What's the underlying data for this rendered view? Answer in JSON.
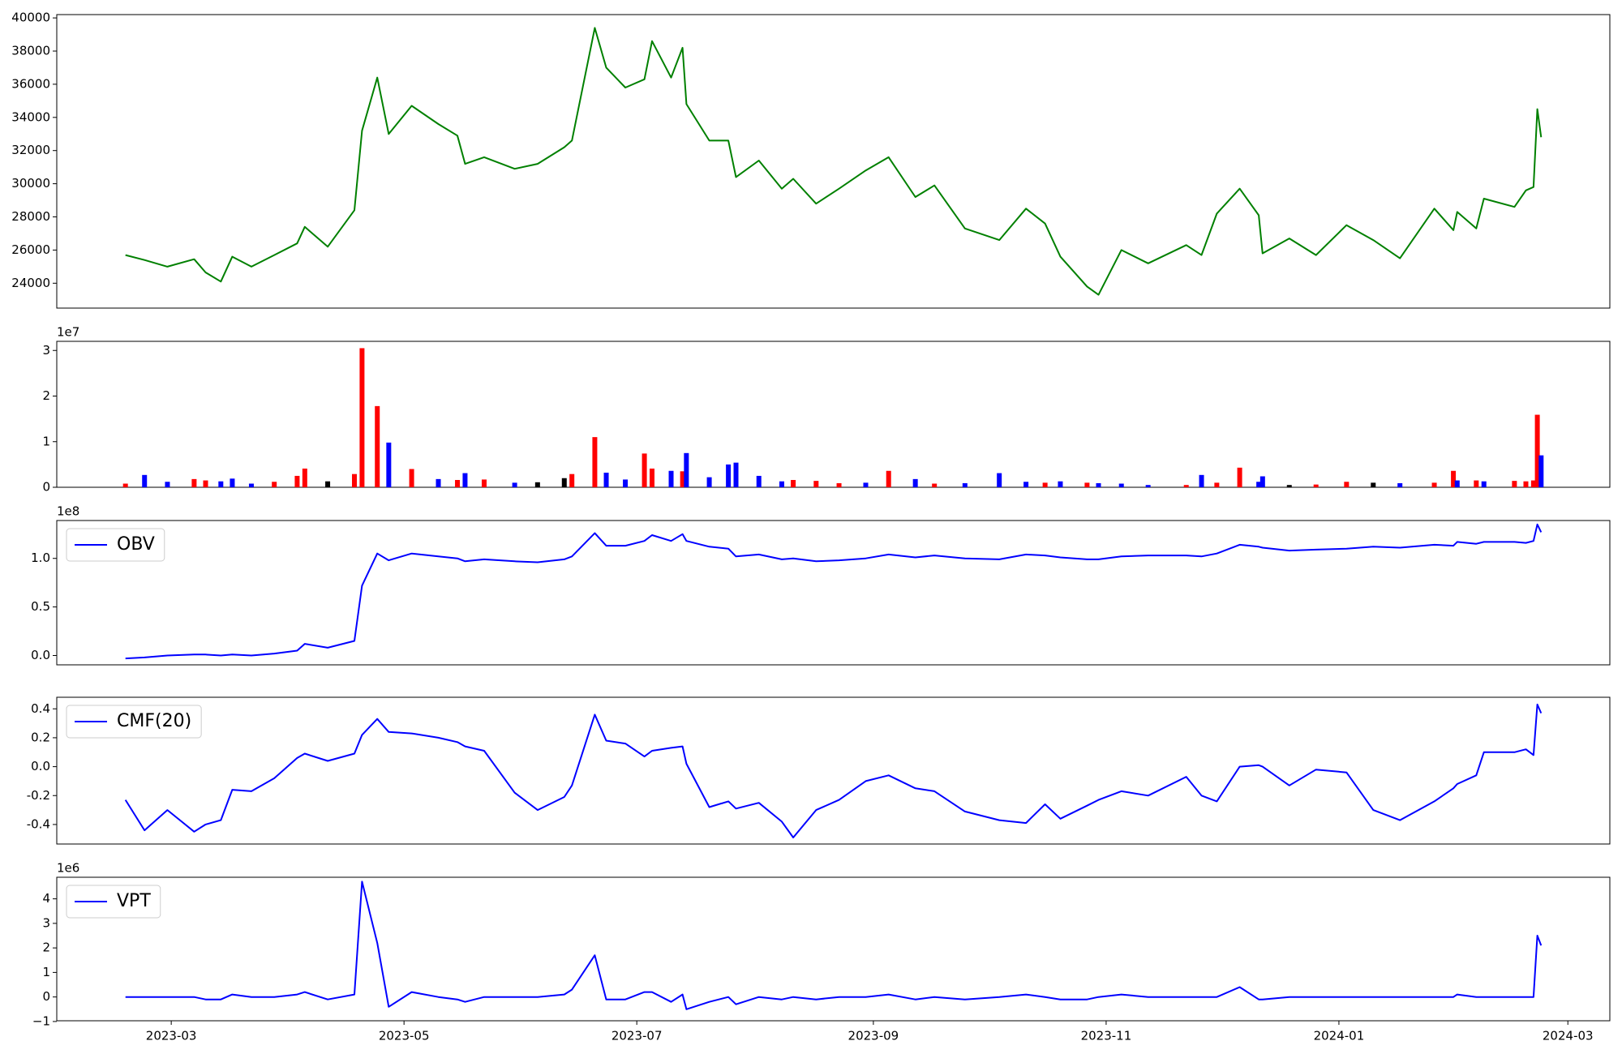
{
  "chart_data": [
    {
      "type": "line",
      "color": "green",
      "x": [
        "2023-02-17",
        "2023-02-22",
        "2023-02-28",
        "2023-03-07",
        "2023-03-10",
        "2023-03-14",
        "2023-03-17",
        "2023-03-22",
        "2023-03-28",
        "2023-04-03",
        "2023-04-05",
        "2023-04-11",
        "2023-04-18",
        "2023-04-20",
        "2023-04-24",
        "2023-04-27",
        "2023-05-03",
        "2023-05-10",
        "2023-05-15",
        "2023-05-17",
        "2023-05-22",
        "2023-05-30",
        "2023-06-05",
        "2023-06-12",
        "2023-06-14",
        "2023-06-20",
        "2023-06-23",
        "2023-06-28",
        "2023-07-03",
        "2023-07-05",
        "2023-07-10",
        "2023-07-13",
        "2023-07-14",
        "2023-07-20",
        "2023-07-25",
        "2023-07-27",
        "2023-08-02",
        "2023-08-08",
        "2023-08-11",
        "2023-08-17",
        "2023-08-23",
        "2023-08-30",
        "2023-09-05",
        "2023-09-12",
        "2023-09-17",
        "2023-09-25",
        "2023-10-04",
        "2023-10-11",
        "2023-10-16",
        "2023-10-20",
        "2023-10-27",
        "2023-10-30",
        "2023-11-05",
        "2023-11-12",
        "2023-11-22",
        "2023-11-26",
        "2023-11-30",
        "2023-12-06",
        "2023-12-11",
        "2023-12-12",
        "2023-12-19",
        "2023-12-26",
        "2024-01-03",
        "2024-01-10",
        "2024-01-17",
        "2024-01-26",
        "2024-01-31",
        "2024-02-01",
        "2024-02-06",
        "2024-02-08",
        "2024-02-16",
        "2024-02-19",
        "2024-02-21",
        "2024-02-22",
        "2024-02-23"
      ],
      "values": [
        25700,
        25400,
        25000,
        25450,
        24650,
        24100,
        25600,
        25000,
        25700,
        26400,
        27400,
        26200,
        28400,
        33200,
        36400,
        33000,
        34700,
        33600,
        32900,
        31200,
        31600,
        30900,
        31200,
        32200,
        32600,
        39400,
        37000,
        35800,
        36300,
        38600,
        36400,
        38200,
        34800,
        32600,
        32600,
        30400,
        31400,
        29700,
        30300,
        28800,
        29700,
        30800,
        31600,
        29200,
        29900,
        27300,
        26600,
        28500,
        27600,
        25600,
        23800,
        23300,
        26000,
        25200,
        26300,
        25700,
        28200,
        29700,
        28100,
        25800,
        26700,
        25700,
        27500,
        26600,
        25500,
        28500,
        27200,
        28300,
        27300,
        29100,
        28600,
        29600,
        29800,
        34500,
        32800
      ],
      "xlim": [
        "2023-01-30",
        "2024-03-12"
      ],
      "ylim": [
        22500,
        40200
      ],
      "yticks": [
        24000,
        26000,
        28000,
        30000,
        32000,
        34000,
        36000,
        38000,
        40000
      ]
    },
    {
      "type": "bar",
      "offset_label": "1e7",
      "x": [
        "2023-02-17",
        "2023-02-22",
        "2023-02-28",
        "2023-03-07",
        "2023-03-10",
        "2023-03-14",
        "2023-03-17",
        "2023-03-22",
        "2023-03-28",
        "2023-04-03",
        "2023-04-05",
        "2023-04-11",
        "2023-04-18",
        "2023-04-20",
        "2023-04-24",
        "2023-04-27",
        "2023-05-03",
        "2023-05-10",
        "2023-05-15",
        "2023-05-17",
        "2023-05-22",
        "2023-05-30",
        "2023-06-05",
        "2023-06-12",
        "2023-06-14",
        "2023-06-20",
        "2023-06-23",
        "2023-06-28",
        "2023-07-03",
        "2023-07-05",
        "2023-07-10",
        "2023-07-13",
        "2023-07-14",
        "2023-07-20",
        "2023-07-25",
        "2023-07-27",
        "2023-08-02",
        "2023-08-08",
        "2023-08-11",
        "2023-08-17",
        "2023-08-23",
        "2023-08-30",
        "2023-09-05",
        "2023-09-12",
        "2023-09-17",
        "2023-09-25",
        "2023-10-04",
        "2023-10-11",
        "2023-10-16",
        "2023-10-20",
        "2023-10-27",
        "2023-10-30",
        "2023-11-05",
        "2023-11-12",
        "2023-11-22",
        "2023-11-26",
        "2023-11-30",
        "2023-12-06",
        "2023-12-11",
        "2023-12-12",
        "2023-12-19",
        "2023-12-26",
        "2024-01-03",
        "2024-01-10",
        "2024-01-17",
        "2024-01-26",
        "2024-01-31",
        "2024-02-01",
        "2024-02-06",
        "2024-02-08",
        "2024-02-16",
        "2024-02-19",
        "2024-02-21",
        "2024-02-22",
        "2024-02-23"
      ],
      "values": [
        800000,
        2700000,
        1200000,
        1800000,
        1500000,
        1300000,
        1900000,
        800000,
        1200000,
        2500000,
        4100000,
        1300000,
        2900000,
        30500000,
        17800000,
        9800000,
        4000000,
        1800000,
        1600000,
        3100000,
        1700000,
        1000000,
        1100000,
        2000000,
        2900000,
        11000000,
        3200000,
        1700000,
        7400000,
        4100000,
        3600000,
        3500000,
        7500000,
        2200000,
        5000000,
        5400000,
        2500000,
        1300000,
        1600000,
        1400000,
        900000,
        1000000,
        3600000,
        1800000,
        800000,
        900000,
        3100000,
        1200000,
        1000000,
        1300000,
        1000000,
        900000,
        800000,
        500000,
        500000,
        2700000,
        1000000,
        4300000,
        1200000,
        2400000,
        500000,
        600000,
        1200000,
        1000000,
        900000,
        1000000,
        3600000,
        1500000,
        1500000,
        1300000,
        1400000,
        1300000,
        1500000,
        15900000,
        7000000
      ],
      "colors": [
        "red",
        "blue",
        "blue",
        "red",
        "red",
        "blue",
        "blue",
        "blue",
        "red",
        "red",
        "red",
        "black",
        "red",
        "red",
        "red",
        "blue",
        "red",
        "blue",
        "red",
        "blue",
        "red",
        "blue",
        "black",
        "black",
        "red",
        "red",
        "blue",
        "blue",
        "red",
        "red",
        "blue",
        "red",
        "blue",
        "blue",
        "blue",
        "blue",
        "blue",
        "blue",
        "red",
        "red",
        "red",
        "blue",
        "red",
        "blue",
        "red",
        "blue",
        "blue",
        "blue",
        "red",
        "blue",
        "red",
        "blue",
        "blue",
        "blue",
        "red",
        "blue",
        "red",
        "red",
        "blue",
        "blue",
        "black",
        "red",
        "red",
        "black",
        "blue",
        "red",
        "red",
        "blue",
        "red",
        "blue",
        "red",
        "red",
        "red",
        "red",
        "blue"
      ],
      "xlim": [
        "2023-01-30",
        "2024-03-12"
      ],
      "ylim": [
        0,
        32000000
      ],
      "yticks": [
        0,
        {
          "value": 10000000,
          "label": "1"
        },
        {
          "value": 20000000,
          "label": "2"
        },
        {
          "value": 30000000,
          "label": "3"
        }
      ]
    },
    {
      "type": "line",
      "offset_label": "1e8",
      "legend": "upper left",
      "x": [
        "2023-02-17",
        "2023-02-22",
        "2023-02-28",
        "2023-03-07",
        "2023-03-10",
        "2023-03-14",
        "2023-03-17",
        "2023-03-22",
        "2023-03-28",
        "2023-04-03",
        "2023-04-05",
        "2023-04-11",
        "2023-04-18",
        "2023-04-20",
        "2023-04-24",
        "2023-04-27",
        "2023-05-03",
        "2023-05-10",
        "2023-05-15",
        "2023-05-17",
        "2023-05-22",
        "2023-05-30",
        "2023-06-05",
        "2023-06-12",
        "2023-06-14",
        "2023-06-20",
        "2023-06-23",
        "2023-06-28",
        "2023-07-03",
        "2023-07-05",
        "2023-07-10",
        "2023-07-13",
        "2023-07-14",
        "2023-07-20",
        "2023-07-25",
        "2023-07-27",
        "2023-08-02",
        "2023-08-08",
        "2023-08-11",
        "2023-08-17",
        "2023-08-23",
        "2023-08-30",
        "2023-09-05",
        "2023-09-12",
        "2023-09-17",
        "2023-09-25",
        "2023-10-04",
        "2023-10-11",
        "2023-10-16",
        "2023-10-20",
        "2023-10-27",
        "2023-10-30",
        "2023-11-05",
        "2023-11-12",
        "2023-11-22",
        "2023-11-26",
        "2023-11-30",
        "2023-12-06",
        "2023-12-11",
        "2023-12-12",
        "2023-12-19",
        "2023-12-26",
        "2024-01-03",
        "2024-01-10",
        "2024-01-17",
        "2024-01-26",
        "2024-01-31",
        "2024-02-01",
        "2024-02-06",
        "2024-02-08",
        "2024-02-16",
        "2024-02-19",
        "2024-02-21",
        "2024-02-22",
        "2024-02-23"
      ],
      "series": [
        {
          "name": "OBV",
          "color": "blue",
          "values": [
            -3000000,
            -2000000,
            0,
            1000000,
            1000000,
            0,
            1000000,
            0,
            2000000,
            5000000,
            12000000,
            8000000,
            15000000,
            72000000,
            105000000,
            98000000,
            105000000,
            102000000,
            100000000,
            97000000,
            99000000,
            97000000,
            96000000,
            99000000,
            102000000,
            126000000,
            113000000,
            113000000,
            118000000,
            124000000,
            118000000,
            125000000,
            118000000,
            112000000,
            110000000,
            102000000,
            104000000,
            99000000,
            100000000,
            97000000,
            98000000,
            100000000,
            104000000,
            101000000,
            103000000,
            100000000,
            99000000,
            104000000,
            103000000,
            101000000,
            99000000,
            99000000,
            102000000,
            103000000,
            103000000,
            102000000,
            105000000,
            114000000,
            112000000,
            111000000,
            108000000,
            109000000,
            110000000,
            112000000,
            111000000,
            114000000,
            113000000,
            117000000,
            115000000,
            117000000,
            117000000,
            116000000,
            118000000,
            135000000,
            127000000
          ]
        }
      ],
      "xlim": [
        "2023-01-30",
        "2024-03-12"
      ],
      "ylim": [
        -9600000,
        139000000
      ],
      "yticks": [
        {
          "value": 0,
          "label": "0.0"
        },
        {
          "value": 50000000,
          "label": "0.5"
        },
        {
          "value": 100000000,
          "label": "1.0"
        }
      ]
    },
    {
      "type": "line",
      "legend": "upper left",
      "x": [
        "2023-02-17",
        "2023-02-22",
        "2023-02-28",
        "2023-03-07",
        "2023-03-10",
        "2023-03-14",
        "2023-03-17",
        "2023-03-22",
        "2023-03-28",
        "2023-04-03",
        "2023-04-05",
        "2023-04-11",
        "2023-04-18",
        "2023-04-20",
        "2023-04-24",
        "2023-04-27",
        "2023-05-03",
        "2023-05-10",
        "2023-05-15",
        "2023-05-17",
        "2023-05-22",
        "2023-05-30",
        "2023-06-05",
        "2023-06-12",
        "2023-06-14",
        "2023-06-20",
        "2023-06-23",
        "2023-06-28",
        "2023-07-03",
        "2023-07-05",
        "2023-07-10",
        "2023-07-13",
        "2023-07-14",
        "2023-07-20",
        "2023-07-25",
        "2023-07-27",
        "2023-08-02",
        "2023-08-08",
        "2023-08-11",
        "2023-08-17",
        "2023-08-23",
        "2023-08-30",
        "2023-09-05",
        "2023-09-12",
        "2023-09-17",
        "2023-09-25",
        "2023-10-04",
        "2023-10-11",
        "2023-10-16",
        "2023-10-20",
        "2023-10-27",
        "2023-10-30",
        "2023-11-05",
        "2023-11-12",
        "2023-11-22",
        "2023-11-26",
        "2023-11-30",
        "2023-12-06",
        "2023-12-11",
        "2023-12-12",
        "2023-12-19",
        "2023-12-26",
        "2024-01-03",
        "2024-01-10",
        "2024-01-17",
        "2024-01-26",
        "2024-01-31",
        "2024-02-01",
        "2024-02-06",
        "2024-02-08",
        "2024-02-16",
        "2024-02-19",
        "2024-02-21",
        "2024-02-22",
        "2024-02-23"
      ],
      "series": [
        {
          "name": "CMF(20)",
          "color": "blue",
          "values": [
            -0.23,
            -0.44,
            -0.3,
            -0.45,
            -0.4,
            -0.37,
            -0.16,
            -0.17,
            -0.08,
            0.06,
            0.09,
            0.04,
            0.09,
            0.22,
            0.33,
            0.24,
            0.23,
            0.2,
            0.17,
            0.14,
            0.11,
            -0.18,
            -0.3,
            -0.21,
            -0.13,
            0.36,
            0.18,
            0.16,
            0.07,
            0.11,
            0.13,
            0.14,
            0.02,
            -0.28,
            -0.24,
            -0.29,
            -0.25,
            -0.38,
            -0.49,
            -0.3,
            -0.23,
            -0.1,
            -0.06,
            -0.15,
            -0.17,
            -0.31,
            -0.37,
            -0.39,
            -0.26,
            -0.36,
            -0.27,
            -0.23,
            -0.17,
            -0.2,
            -0.07,
            -0.2,
            -0.24,
            0,
            0.01,
            0,
            -0.13,
            -0.02,
            -0.04,
            -0.3,
            -0.37,
            -0.24,
            -0.15,
            -0.12,
            -0.06,
            0.1,
            0.1,
            0.12,
            0.08,
            0.43,
            0.37
          ]
        }
      ],
      "xlim": [
        "2023-01-30",
        "2024-03-12"
      ],
      "ylim": [
        -0.535,
        0.48
      ],
      "yticks": [
        -0.4,
        -0.2,
        {
          "value": 0,
          "label": "0.0"
        },
        0.2,
        0.4
      ]
    },
    {
      "type": "line",
      "offset_label": "1e6",
      "legend": "upper left",
      "x": [
        "2023-02-17",
        "2023-02-22",
        "2023-02-28",
        "2023-03-07",
        "2023-03-10",
        "2023-03-14",
        "2023-03-17",
        "2023-03-22",
        "2023-03-28",
        "2023-04-03",
        "2023-04-05",
        "2023-04-11",
        "2023-04-18",
        "2023-04-20",
        "2023-04-24",
        "2023-04-27",
        "2023-05-03",
        "2023-05-10",
        "2023-05-15",
        "2023-05-17",
        "2023-05-22",
        "2023-05-30",
        "2023-06-05",
        "2023-06-12",
        "2023-06-14",
        "2023-06-20",
        "2023-06-23",
        "2023-06-28",
        "2023-07-03",
        "2023-07-05",
        "2023-07-10",
        "2023-07-13",
        "2023-07-14",
        "2023-07-20",
        "2023-07-25",
        "2023-07-27",
        "2023-08-02",
        "2023-08-08",
        "2023-08-11",
        "2023-08-17",
        "2023-08-23",
        "2023-08-30",
        "2023-09-05",
        "2023-09-12",
        "2023-09-17",
        "2023-09-25",
        "2023-10-04",
        "2023-10-11",
        "2023-10-16",
        "2023-10-20",
        "2023-10-27",
        "2023-10-30",
        "2023-11-05",
        "2023-11-12",
        "2023-11-22",
        "2023-11-26",
        "2023-11-30",
        "2023-12-06",
        "2023-12-11",
        "2023-12-12",
        "2023-12-19",
        "2023-12-26",
        "2024-01-03",
        "2024-01-10",
        "2024-01-17",
        "2024-01-26",
        "2024-01-31",
        "2024-02-01",
        "2024-02-06",
        "2024-02-08",
        "2024-02-16",
        "2024-02-19",
        "2024-02-21",
        "2024-02-22",
        "2024-02-23"
      ],
      "series": [
        {
          "name": "VPT",
          "color": "blue",
          "values": [
            0,
            0,
            0,
            0,
            -100000,
            -100000,
            100000,
            0,
            0,
            100000,
            200000,
            -100000,
            100000,
            4700000,
            2200000,
            -400000,
            200000,
            0,
            -100000,
            -200000,
            0,
            0,
            0,
            100000,
            300000,
            1700000,
            -100000,
            -100000,
            200000,
            200000,
            -200000,
            100000,
            -500000,
            -200000,
            0,
            -300000,
            0,
            -100000,
            0,
            -100000,
            0,
            0,
            100000,
            -100000,
            0,
            -100000,
            0,
            100000,
            0,
            -100000,
            -100000,
            0,
            100000,
            0,
            0,
            0,
            0,
            400000,
            -100000,
            -100000,
            0,
            0,
            0,
            0,
            0,
            0,
            0,
            100000,
            0,
            0,
            0,
            0,
            0,
            2500000,
            2100000
          ]
        }
      ],
      "xlim": [
        "2023-01-30",
        "2024-03-12"
      ],
      "ylim": [
        -970000,
        4880000
      ],
      "yticks": [
        {
          "value": -1000000,
          "label": "−1"
        },
        0,
        {
          "value": 1000000,
          "label": "1"
        },
        {
          "value": 2000000,
          "label": "2"
        },
        {
          "value": 3000000,
          "label": "3"
        },
        {
          "value": 4000000,
          "label": "4"
        }
      ],
      "xticks": [
        {
          "value": "2023-03-01",
          "label": "2023-03"
        },
        {
          "value": "2023-05-01",
          "label": "2023-05"
        },
        {
          "value": "2023-07-01",
          "label": "2023-07"
        },
        {
          "value": "2023-09-01",
          "label": "2023-09"
        },
        {
          "value": "2023-11-01",
          "label": "2023-11"
        },
        {
          "value": "2024-01-01",
          "label": "2024-01"
        },
        {
          "value": "2024-03-01",
          "label": "2024-03"
        }
      ]
    }
  ]
}
